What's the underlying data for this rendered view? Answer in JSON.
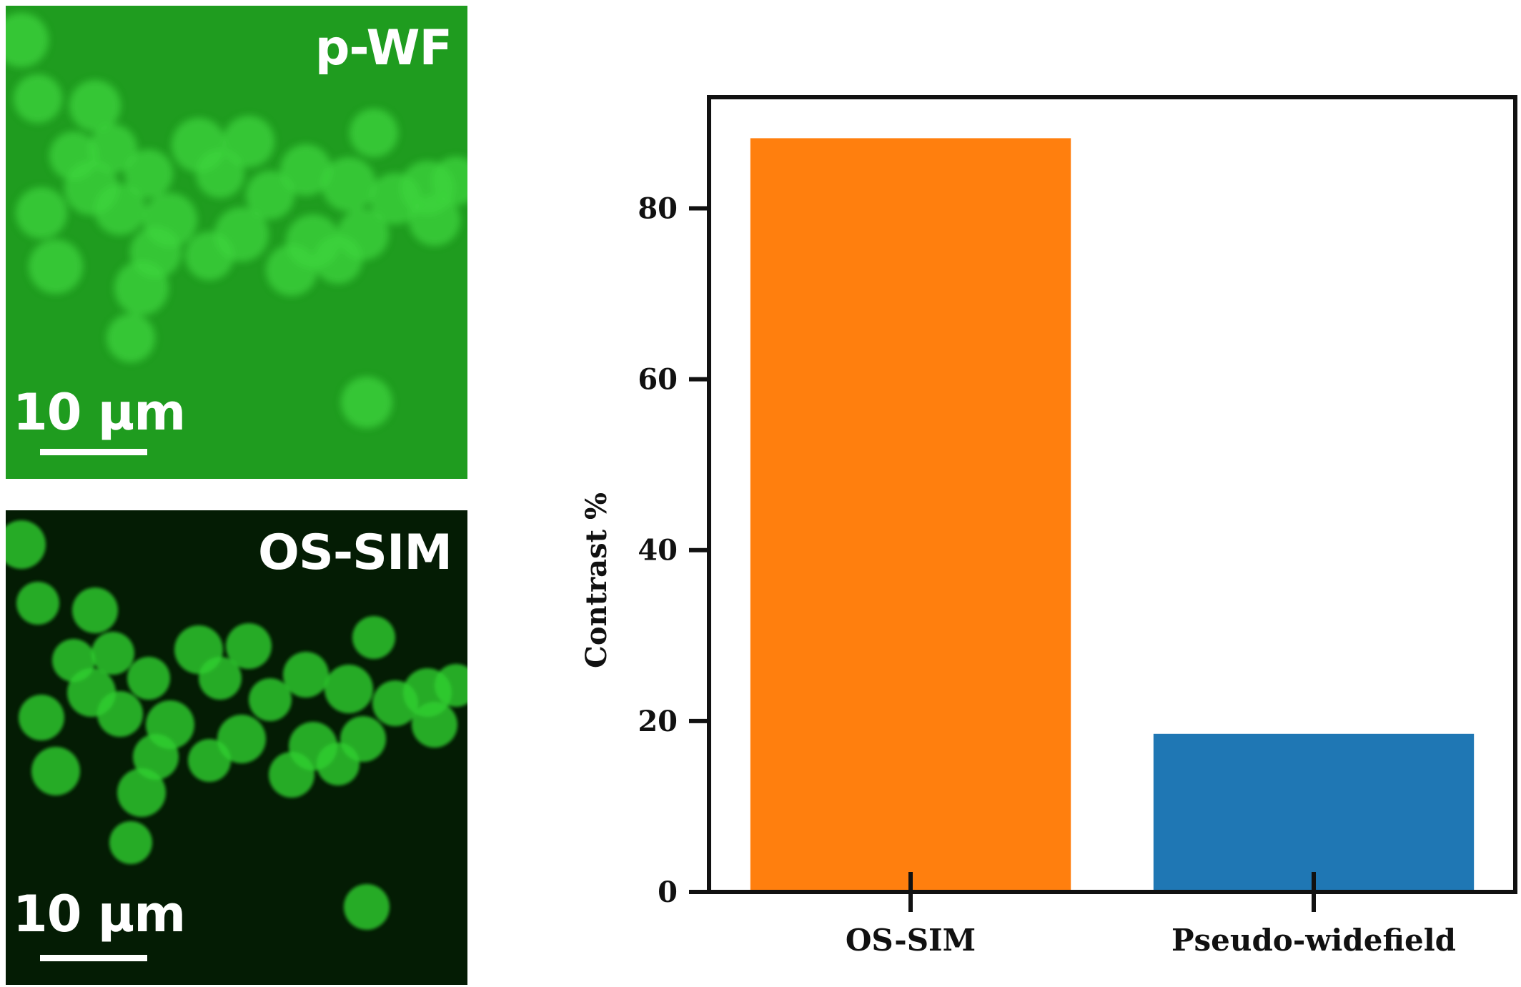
{
  "panels": {
    "top": {
      "label": "p-WF",
      "scale_label": "10 µm",
      "background": "#1f9c1f",
      "cell_color": "#3ed43e"
    },
    "bottom": {
      "label": "OS-SIM",
      "scale_label": "10 µm",
      "background": "#041c04",
      "cell_color": "#2fcf2f"
    }
  },
  "chart_data": {
    "type": "bar",
    "categories": [
      "OS-SIM",
      "Pseudo-widefield"
    ],
    "values": [
      88.2,
      18.5
    ],
    "colors": [
      "#ff7f0e",
      "#1f77b4"
    ],
    "title": "",
    "xlabel": "",
    "ylabel": "Contrast %",
    "ylim": [
      0,
      93
    ],
    "yticks": [
      0,
      20,
      40,
      60,
      80
    ],
    "grid": false,
    "legend": "none"
  }
}
